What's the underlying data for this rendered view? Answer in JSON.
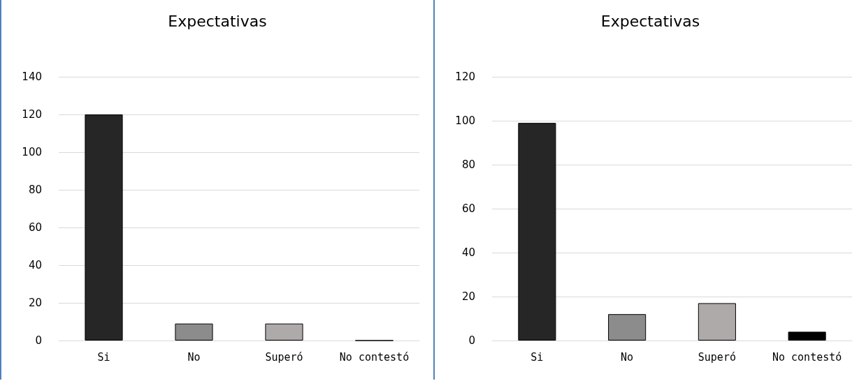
{
  "chart_data": [
    {
      "type": "bar",
      "title": "Expectativas",
      "categories": [
        "Si",
        "No",
        "Superó",
        "No contestó"
      ],
      "values": [
        120,
        9,
        9,
        0
      ],
      "colors": [
        "#262626",
        "#8c8c8c",
        "#aeaaaa",
        "#000000"
      ],
      "ylim": [
        0,
        140
      ],
      "yticks": [
        0,
        20,
        40,
        60,
        80,
        100,
        120,
        140
      ],
      "grid": "y"
    },
    {
      "type": "bar",
      "title": "Expectativas",
      "categories": [
        "Si",
        "No",
        "Superó",
        "No contestó"
      ],
      "values": [
        99,
        12,
        17,
        4
      ],
      "colors": [
        "#262626",
        "#8c8c8c",
        "#aeaaaa",
        "#000000"
      ],
      "ylim": [
        0,
        120
      ],
      "yticks": [
        0,
        20,
        40,
        60,
        80,
        100,
        120
      ],
      "grid": "y"
    }
  ]
}
